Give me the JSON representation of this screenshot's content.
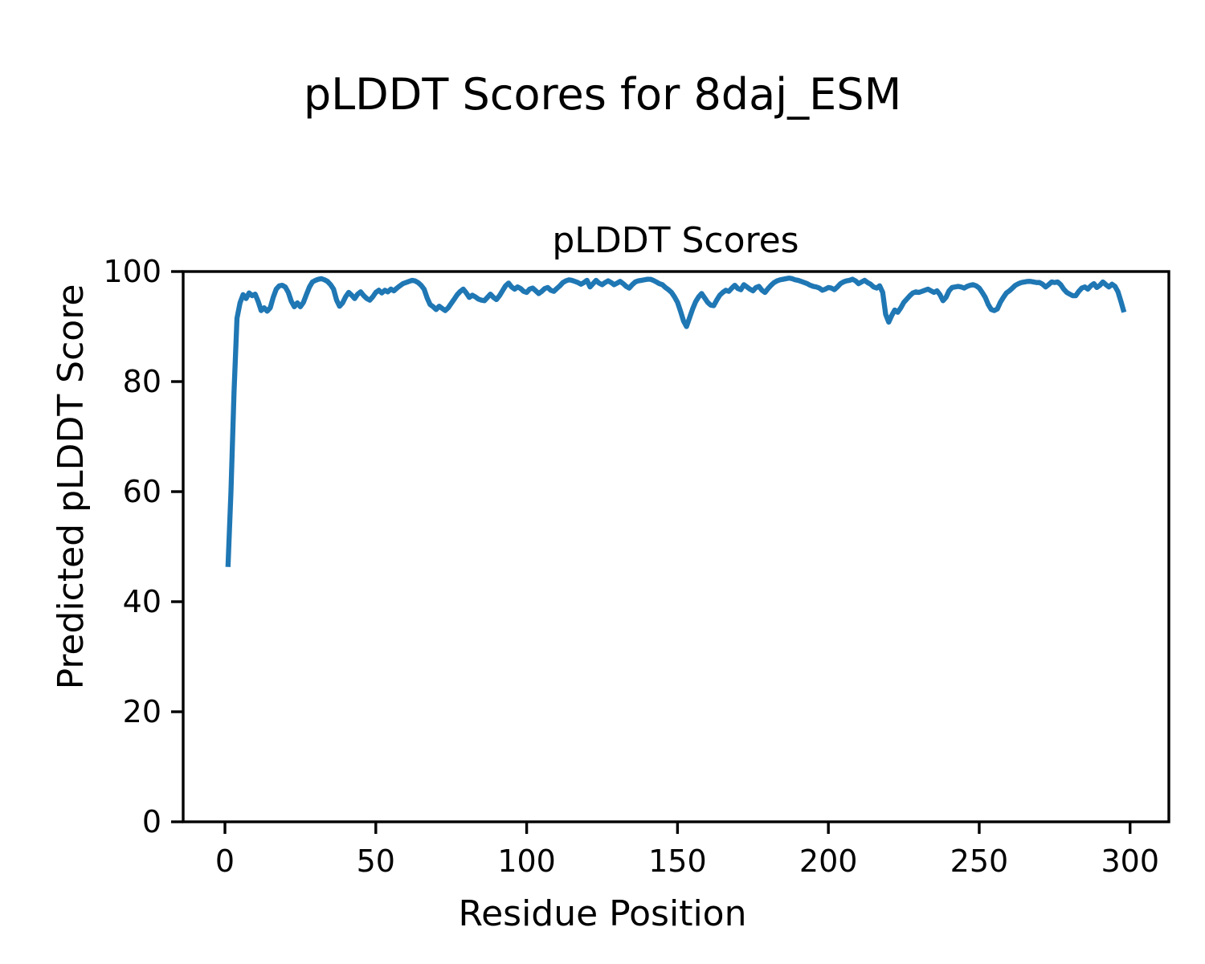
{
  "figure": {
    "suptitle": "pLDDT Scores for 8daj_ESM",
    "axes_title": "pLDDT Scores",
    "xlabel": "Residue Position",
    "ylabel": "Predicted pLDDT Score"
  },
  "colors": {
    "line": "#1f77b4",
    "axes": "#000000",
    "text": "#000000",
    "background": "#ffffff"
  },
  "chart_data": {
    "type": "line",
    "title": "pLDDT Scores",
    "suptitle": "pLDDT Scores for 8daj_ESM",
    "xlabel": "Residue Position",
    "ylabel": "Predicted pLDDT Score",
    "grid": false,
    "legend_position": "none",
    "xlim": [
      -13.85,
      312.85
    ],
    "ylim": [
      0,
      100
    ],
    "xticks": [
      0,
      50,
      100,
      150,
      200,
      250,
      300
    ],
    "yticks": [
      0,
      20,
      40,
      60,
      80,
      100
    ],
    "series": [
      {
        "name": "pLDDT",
        "color": "#1f77b4",
        "x_start": 1,
        "x_end": 298,
        "y": [
          46.3,
          60.0,
          78.0,
          91.5,
          94.3,
          95.8,
          95.1,
          96.1,
          95.6,
          95.9,
          94.6,
          92.9,
          93.4,
          92.8,
          93.4,
          95.3,
          96.8,
          97.4,
          97.5,
          97.2,
          96.2,
          94.6,
          93.6,
          94.3,
          93.6,
          94.4,
          95.8,
          97.2,
          98.1,
          98.4,
          98.6,
          98.7,
          98.5,
          98.2,
          97.6,
          96.8,
          94.8,
          93.7,
          94.3,
          95.4,
          96.2,
          95.7,
          95.1,
          95.9,
          96.3,
          95.6,
          95.1,
          94.8,
          95.4,
          96.2,
          96.6,
          96.1,
          96.6,
          96.3,
          96.8,
          96.5,
          97.0,
          97.4,
          97.8,
          98.0,
          98.2,
          98.4,
          98.3,
          98.0,
          97.5,
          96.8,
          95.2,
          94.0,
          93.6,
          93.1,
          93.7,
          93.3,
          92.9,
          93.4,
          94.2,
          95.0,
          95.8,
          96.4,
          96.8,
          96.1,
          95.3,
          95.7,
          95.4,
          95.0,
          94.8,
          94.7,
          95.3,
          95.9,
          95.3,
          94.9,
          95.6,
          96.5,
          97.4,
          97.9,
          97.2,
          96.8,
          97.2,
          96.9,
          96.4,
          96.2,
          96.8,
          97.0,
          96.5,
          96.0,
          96.4,
          96.9,
          97.1,
          96.6,
          96.4,
          96.9,
          97.4,
          98.0,
          98.3,
          98.5,
          98.4,
          98.2,
          98.0,
          97.7,
          98.0,
          98.4,
          97.2,
          97.8,
          98.4,
          97.9,
          97.6,
          98.0,
          98.3,
          98.0,
          97.6,
          97.9,
          98.2,
          97.8,
          97.3,
          97.0,
          97.6,
          98.1,
          98.3,
          98.4,
          98.5,
          98.6,
          98.6,
          98.4,
          98.1,
          97.8,
          97.6,
          97.1,
          96.7,
          96.2,
          95.4,
          94.4,
          92.8,
          91.0,
          90.0,
          91.6,
          93.2,
          94.5,
          95.4,
          96.0,
          95.2,
          94.4,
          93.9,
          93.8,
          94.8,
          95.7,
          96.2,
          96.6,
          96.4,
          97.0,
          97.5,
          96.9,
          96.7,
          97.6,
          97.2,
          96.8,
          96.5,
          97.1,
          97.3,
          96.6,
          96.2,
          96.9,
          97.5,
          98.0,
          98.3,
          98.5,
          98.6,
          98.7,
          98.8,
          98.7,
          98.5,
          98.4,
          98.2,
          98.0,
          97.8,
          97.5,
          97.3,
          97.2,
          97.0,
          96.6,
          96.8,
          97.1,
          97.0,
          96.7,
          97.2,
          97.8,
          98.1,
          98.3,
          98.4,
          98.6,
          98.3,
          97.8,
          98.1,
          98.4,
          98.0,
          97.7,
          97.2,
          97.0,
          97.4,
          96.2,
          92.2,
          90.8,
          92.0,
          93.0,
          92.6,
          93.4,
          94.4,
          95.0,
          95.6,
          96.1,
          96.3,
          96.2,
          96.4,
          96.6,
          96.8,
          96.5,
          96.2,
          96.5,
          95.8,
          94.7,
          95.3,
          96.5,
          97.1,
          97.2,
          97.3,
          97.2,
          97.0,
          97.3,
          97.5,
          97.6,
          97.4,
          97.0,
          96.2,
          95.3,
          94.0,
          93.1,
          92.9,
          93.2,
          94.4,
          95.3,
          96.1,
          96.5,
          97.0,
          97.5,
          97.8,
          98.0,
          98.1,
          98.2,
          98.2,
          98.1,
          98.0,
          98.0,
          97.7,
          97.2,
          97.6,
          98.1,
          98.0,
          98.1,
          97.6,
          96.8,
          96.2,
          95.9,
          95.6,
          95.6,
          96.4,
          97.0,
          97.2,
          96.8,
          97.4,
          97.8,
          97.1,
          97.5,
          98.1,
          97.6,
          97.2,
          97.7,
          97.3,
          96.3,
          94.5,
          92.6
        ]
      }
    ]
  }
}
